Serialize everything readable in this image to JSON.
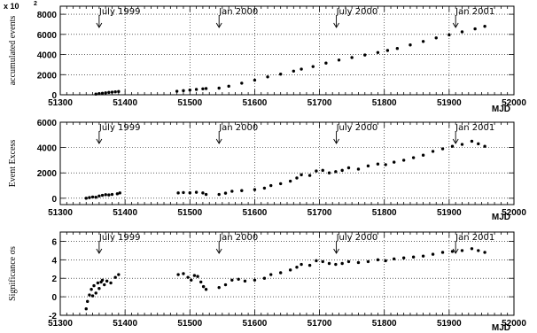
{
  "chart_data": [
    {
      "type": "scatter",
      "ylabel": "accumulated events",
      "y_multiplier": "x 10",
      "y_multiplier_exp": "2",
      "xlabel": "MJD",
      "xlim": [
        51300,
        52000
      ],
      "ylim": [
        0,
        8800
      ],
      "xticks": [
        51300,
        51400,
        51500,
        51600,
        51700,
        51800,
        51900,
        52000
      ],
      "yticks": [
        0,
        2000,
        4000,
        6000,
        8000
      ],
      "grid": true,
      "series": [
        {
          "values": [
            [
              51355,
              70
            ],
            [
              51360,
              110
            ],
            [
              51365,
              150
            ],
            [
              51370,
              190
            ],
            [
              51375,
              230
            ],
            [
              51380,
              260
            ],
            [
              51385,
              290
            ],
            [
              51390,
              320
            ],
            [
              51480,
              350
            ],
            [
              51490,
              410
            ],
            [
              51500,
              470
            ],
            [
              51510,
              530
            ],
            [
              51520,
              590
            ],
            [
              51525,
              620
            ],
            [
              51545,
              660
            ],
            [
              51560,
              850
            ],
            [
              51580,
              1150
            ],
            [
              51600,
              1450
            ],
            [
              51620,
              1780
            ],
            [
              51640,
              2050
            ],
            [
              51660,
              2350
            ],
            [
              51672,
              2550
            ],
            [
              51690,
              2800
            ],
            [
              51710,
              3150
            ],
            [
              51730,
              3450
            ],
            [
              51750,
              3700
            ],
            [
              51770,
              3950
            ],
            [
              51790,
              4200
            ],
            [
              51805,
              4400
            ],
            [
              51820,
              4600
            ],
            [
              51840,
              4950
            ],
            [
              51860,
              5300
            ],
            [
              51880,
              5650
            ],
            [
              51900,
              5950
            ],
            [
              51920,
              6250
            ],
            [
              51940,
              6550
            ],
            [
              51955,
              6800
            ]
          ]
        }
      ]
    },
    {
      "type": "scatter",
      "ylabel": "Event Excess",
      "xlabel": "MJD",
      "xlim": [
        51300,
        52000
      ],
      "ylim": [
        -500,
        6000
      ],
      "xticks": [
        51300,
        51400,
        51500,
        51600,
        51700,
        51800,
        51900,
        52000
      ],
      "yticks": [
        0,
        2000,
        4000,
        6000
      ],
      "grid": true,
      "series": [
        {
          "values": [
            [
              51340,
              0
            ],
            [
              51345,
              50
            ],
            [
              51350,
              100
            ],
            [
              51355,
              80
            ],
            [
              51360,
              180
            ],
            [
              51365,
              230
            ],
            [
              51370,
              280
            ],
            [
              51375,
              260
            ],
            [
              51380,
              300
            ],
            [
              51388,
              350
            ],
            [
              51392,
              420
            ],
            [
              51482,
              420
            ],
            [
              51490,
              450
            ],
            [
              51500,
              430
            ],
            [
              51510,
              470
            ],
            [
              51520,
              420
            ],
            [
              51525,
              300
            ],
            [
              51545,
              300
            ],
            [
              51555,
              400
            ],
            [
              51565,
              550
            ],
            [
              51580,
              600
            ],
            [
              51600,
              680
            ],
            [
              51615,
              800
            ],
            [
              51625,
              1000
            ],
            [
              51640,
              1150
            ],
            [
              51655,
              1350
            ],
            [
              51665,
              1600
            ],
            [
              51672,
              1850
            ],
            [
              51685,
              1800
            ],
            [
              51695,
              2150
            ],
            [
              51705,
              2200
            ],
            [
              51715,
              2000
            ],
            [
              51725,
              2100
            ],
            [
              51735,
              2200
            ],
            [
              51745,
              2400
            ],
            [
              51760,
              2300
            ],
            [
              51775,
              2550
            ],
            [
              51790,
              2700
            ],
            [
              51802,
              2650
            ],
            [
              51815,
              2850
            ],
            [
              51830,
              3000
            ],
            [
              51845,
              3200
            ],
            [
              51860,
              3400
            ],
            [
              51875,
              3700
            ],
            [
              51890,
              3900
            ],
            [
              51905,
              4100
            ],
            [
              51920,
              4250
            ],
            [
              51935,
              4500
            ],
            [
              51945,
              4300
            ],
            [
              51955,
              4100
            ]
          ]
        }
      ]
    },
    {
      "type": "scatter",
      "ylabel": "Significance σs",
      "xlabel": "MJD",
      "xlim": [
        51300,
        52000
      ],
      "ylim": [
        -2,
        7
      ],
      "xticks": [
        51300,
        51400,
        51500,
        51600,
        51700,
        51800,
        51900,
        52000
      ],
      "yticks": [
        -2,
        0,
        2,
        4,
        6
      ],
      "grid": true,
      "series": [
        {
          "values": [
            [
              51340,
              -1.3
            ],
            [
              51342,
              -0.5
            ],
            [
              51345,
              0.2
            ],
            [
              51348,
              0.8
            ],
            [
              51350,
              0.1
            ],
            [
              51352,
              1.2
            ],
            [
              51355,
              0.4
            ],
            [
              51358,
              1.5
            ],
            [
              51360,
              0.9
            ],
            [
              51363,
              1.6
            ],
            [
              51365,
              1.8
            ],
            [
              51368,
              1.3
            ],
            [
              51372,
              1.7
            ],
            [
              51378,
              1.5
            ],
            [
              51385,
              2.1
            ],
            [
              51390,
              2.4
            ],
            [
              51482,
              2.4
            ],
            [
              51490,
              2.5
            ],
            [
              51497,
              2.1
            ],
            [
              51502,
              1.8
            ],
            [
              51507,
              2.3
            ],
            [
              51512,
              2.2
            ],
            [
              51517,
              1.6
            ],
            [
              51521,
              1.1
            ],
            [
              51525,
              0.8
            ],
            [
              51545,
              1.0
            ],
            [
              51555,
              1.3
            ],
            [
              51565,
              1.8
            ],
            [
              51575,
              1.9
            ],
            [
              51585,
              1.7
            ],
            [
              51600,
              1.8
            ],
            [
              51615,
              2.0
            ],
            [
              51625,
              2.4
            ],
            [
              51640,
              2.6
            ],
            [
              51655,
              2.9
            ],
            [
              51665,
              3.2
            ],
            [
              51672,
              3.5
            ],
            [
              51685,
              3.4
            ],
            [
              51695,
              3.9
            ],
            [
              51705,
              3.8
            ],
            [
              51715,
              3.6
            ],
            [
              51725,
              3.5
            ],
            [
              51735,
              3.6
            ],
            [
              51745,
              3.8
            ],
            [
              51760,
              3.7
            ],
            [
              51775,
              3.8
            ],
            [
              51790,
              4.0
            ],
            [
              51802,
              3.9
            ],
            [
              51815,
              4.1
            ],
            [
              51830,
              4.2
            ],
            [
              51845,
              4.3
            ],
            [
              51860,
              4.4
            ],
            [
              51875,
              4.6
            ],
            [
              51890,
              4.8
            ],
            [
              51905,
              4.9
            ],
            [
              51920,
              5.0
            ],
            [
              51935,
              5.2
            ],
            [
              51945,
              5.0
            ],
            [
              51955,
              4.8
            ]
          ]
        }
      ]
    }
  ],
  "annotations": [
    {
      "label": "July 1999",
      "mjd": 51360
    },
    {
      "label": "Jan 2000",
      "mjd": 51545
    },
    {
      "label": "July 2000",
      "mjd": 51726
    },
    {
      "label": "Jan 2001",
      "mjd": 51910
    }
  ]
}
